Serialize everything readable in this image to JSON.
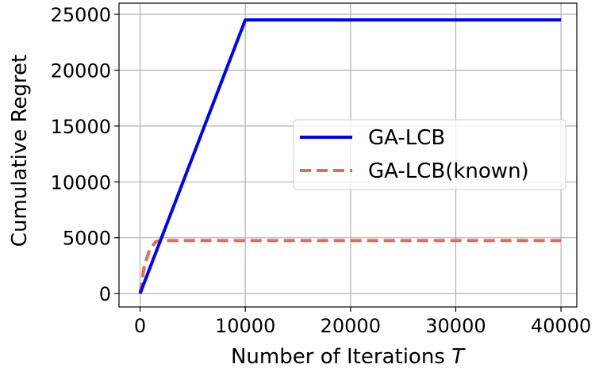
{
  "chart_data": {
    "type": "line",
    "title": "",
    "xlabel": "Number of Iterations",
    "xlabel_var": "T",
    "ylabel": "Cumulative Regret",
    "xlim": [
      -2000,
      41500
    ],
    "ylim": [
      -1200,
      26000
    ],
    "x_ticks": [
      0,
      10000,
      20000,
      30000,
      40000
    ],
    "y_ticks": [
      0,
      5000,
      10000,
      15000,
      20000,
      25000
    ],
    "x_tick_labels": [
      "0",
      "10000",
      "20000",
      "30000",
      "40000"
    ],
    "y_tick_labels": [
      "0",
      "5000",
      "10000",
      "15000",
      "20000",
      "25000"
    ],
    "grid": true,
    "legend_position": "center-right",
    "series": [
      {
        "name": "GA-LCB",
        "color": "#0000ff",
        "style": "solid",
        "x": [
          0,
          10000,
          40000
        ],
        "y": [
          0,
          24500,
          24500
        ]
      },
      {
        "name": "GA-LCB(known)",
        "color": "#e8685a",
        "style": "dashed",
        "x": [
          0,
          400,
          900,
          1500,
          2000,
          40000
        ],
        "y": [
          0,
          2500,
          3900,
          4650,
          4750,
          4750
        ]
      }
    ]
  }
}
